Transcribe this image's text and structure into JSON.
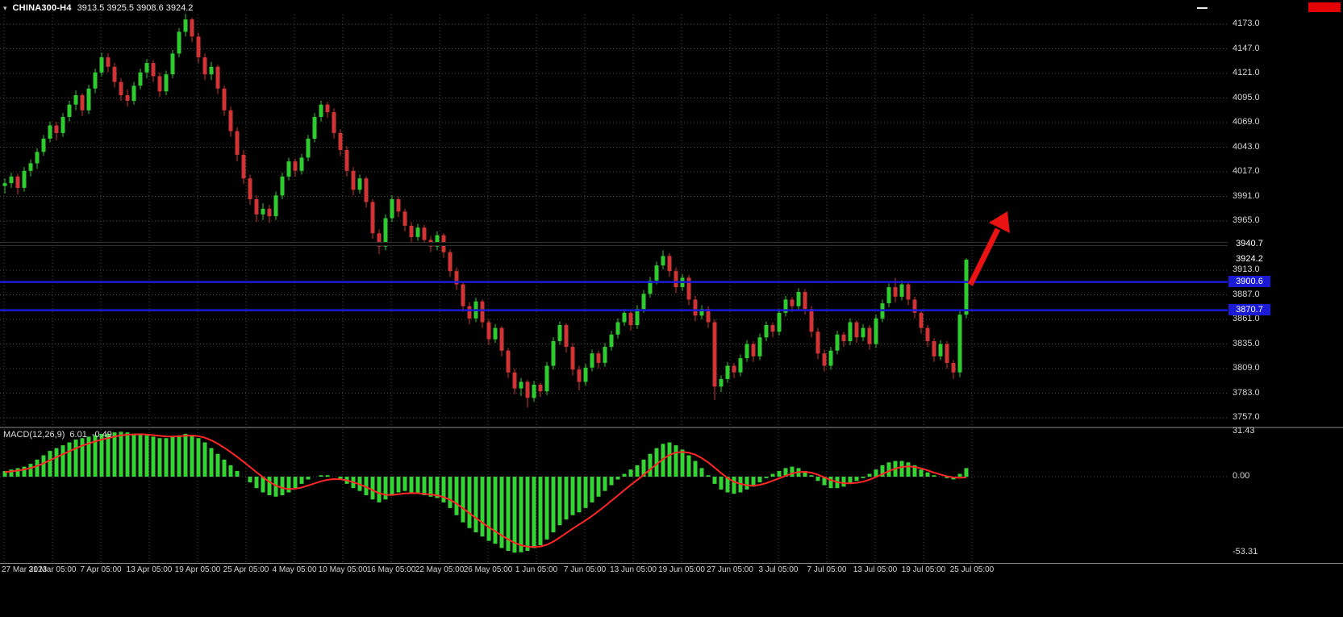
{
  "titlebar": {
    "symbol": "CHINA300-H4",
    "ohlc": "3913.5 3925.5 3908.6 3924.2"
  },
  "colors": {
    "background": "#000000",
    "grid": "#4a4a4a",
    "bull": "#2ecc2e",
    "bear": "#d03434",
    "macd_hist": "#35d435",
    "macd_signal": "#ff2626",
    "separator": "#8a8a8a",
    "axis_text": "#d4d4d4",
    "tag_text": "#ffffff",
    "blue_line": "#1b1bd6",
    "black_line": "#000000",
    "arrow": "#ea1212",
    "red_badge": "#e20000"
  },
  "chart_data": {
    "type": "candlestick",
    "symbol": "CHINA300",
    "timeframe": "H4",
    "last_ohlc": {
      "open": 3913.5,
      "high": 3925.5,
      "low": 3908.6,
      "close": 3924.2
    },
    "price_axis": {
      "grid_values": [
        4173,
        4147,
        4121,
        4095,
        4069,
        4043,
        4017,
        3991,
        3965,
        3939,
        3913,
        3887,
        3861,
        3835,
        3809,
        3783,
        3757
      ],
      "tick_labels": [
        {
          "value": 4173,
          "text": "4173.0"
        },
        {
          "value": 4147,
          "text": "4147.0"
        },
        {
          "value": 4121,
          "text": "4121.0"
        },
        {
          "value": 4095,
          "text": "4095.0"
        },
        {
          "value": 4069,
          "text": "4069.0"
        },
        {
          "value": 4043,
          "text": "4043.0"
        },
        {
          "value": 4017,
          "text": "4017.0"
        },
        {
          "value": 3991,
          "text": "3991.0"
        },
        {
          "value": 3965,
          "text": "3965.0"
        },
        {
          "value": 3913,
          "text": "3913.0"
        },
        {
          "value": 3887,
          "text": "3887.0"
        },
        {
          "value": 3861,
          "text": "3861.0"
        },
        {
          "value": 3835,
          "text": "3835.0"
        },
        {
          "value": 3809,
          "text": "3809.0"
        },
        {
          "value": 3783,
          "text": "3783.0"
        },
        {
          "value": 3757,
          "text": "3757.0"
        }
      ],
      "tags": [
        {
          "text": "3940.7",
          "value": 3940.7,
          "bg": "#000000"
        },
        {
          "text": "3924.2",
          "value": 3924.2,
          "bg": "#000000"
        },
        {
          "text": "3900.6",
          "value": 3900.6,
          "bg": "#1b1bd6"
        },
        {
          "text": "3870.7",
          "value": 3870.7,
          "bg": "#1b1bd6"
        }
      ]
    },
    "hlines": [
      {
        "value": 3940.7,
        "color": "#000000",
        "halo": "#2f2f2f",
        "width": 3
      },
      {
        "value": 3900.6,
        "color": "#1b1bd6",
        "width": 2.5
      },
      {
        "value": 3870.7,
        "color": "#1b1bd6",
        "width": 2.5
      }
    ],
    "time_axis": [
      "27 Mar 2023",
      "31 Mar 05:00",
      "7 Apr 05:00",
      "13 Apr 05:00",
      "19 Apr 05:00",
      "25 Apr 05:00",
      "4 May 05:00",
      "10 May 05:00",
      "16 May 05:00",
      "22 May 05:00",
      "26 May 05:00",
      "1 Jun 05:00",
      "7 Jun 05:00",
      "13 Jun 05:00",
      "19 Jun 05:00",
      "27 Jun 05:00",
      "3 Jul 05:00",
      "7 Jul 05:00",
      "13 Jul 05:00",
      "19 Jul 05:00",
      "25 Jul 05:00"
    ],
    "candles": [
      [
        4002,
        4010,
        3994,
        4005
      ],
      [
        4005,
        4016,
        4000,
        4012
      ],
      [
        4012,
        4015,
        3993,
        4000
      ],
      [
        4000,
        4022,
        3996,
        4018
      ],
      [
        4018,
        4030,
        4012,
        4026
      ],
      [
        4026,
        4042,
        4020,
        4038
      ],
      [
        4038,
        4056,
        4034,
        4052
      ],
      [
        4052,
        4070,
        4048,
        4066
      ],
      [
        4066,
        4070,
        4050,
        4058
      ],
      [
        4058,
        4079,
        4054,
        4075
      ],
      [
        4075,
        4092,
        4070,
        4088
      ],
      [
        4088,
        4103,
        4082,
        4098
      ],
      [
        4098,
        4100,
        4076,
        4082
      ],
      [
        4082,
        4109,
        4078,
        4105
      ],
      [
        4105,
        4126,
        4100,
        4122
      ],
      [
        4122,
        4143,
        4118,
        4138
      ],
      [
        4138,
        4142,
        4122,
        4128
      ],
      [
        4128,
        4132,
        4106,
        4112
      ],
      [
        4112,
        4116,
        4092,
        4098
      ],
      [
        4098,
        4104,
        4086,
        4092
      ],
      [
        4092,
        4112,
        4088,
        4108
      ],
      [
        4108,
        4126,
        4104,
        4122
      ],
      [
        4122,
        4136,
        4116,
        4132
      ],
      [
        4132,
        4135,
        4112,
        4118
      ],
      [
        4118,
        4122,
        4096,
        4102
      ],
      [
        4102,
        4124,
        4098,
        4120
      ],
      [
        4120,
        4146,
        4116,
        4142
      ],
      [
        4142,
        4169,
        4138,
        4165
      ],
      [
        4165,
        4184,
        4160,
        4178
      ],
      [
        4178,
        4180,
        4154,
        4160
      ],
      [
        4160,
        4164,
        4132,
        4138
      ],
      [
        4138,
        4142,
        4114,
        4120
      ],
      [
        4120,
        4133,
        4114,
        4128
      ],
      [
        4128,
        4130,
        4099,
        4105
      ],
      [
        4105,
        4108,
        4076,
        4082
      ],
      [
        4082,
        4086,
        4054,
        4060
      ],
      [
        4060,
        4064,
        4028,
        4035
      ],
      [
        4035,
        4040,
        4004,
        4010
      ],
      [
        4010,
        4014,
        3982,
        3988
      ],
      [
        3988,
        3992,
        3964,
        3972
      ],
      [
        3972,
        3984,
        3966,
        3978
      ],
      [
        3978,
        3982,
        3963,
        3970
      ],
      [
        3970,
        3996,
        3966,
        3992
      ],
      [
        3992,
        4016,
        3988,
        4012
      ],
      [
        4012,
        4032,
        4008,
        4028
      ],
      [
        4028,
        4031,
        4012,
        4018
      ],
      [
        4018,
        4036,
        4014,
        4032
      ],
      [
        4032,
        4056,
        4028,
        4052
      ],
      [
        4052,
        4079,
        4048,
        4075
      ],
      [
        4075,
        4092,
        4070,
        4088
      ],
      [
        4088,
        4091,
        4074,
        4080
      ],
      [
        4080,
        4084,
        4052,
        4058
      ],
      [
        4058,
        4062,
        4034,
        4040
      ],
      [
        4040,
        4044,
        4012,
        4018
      ],
      [
        4018,
        4022,
        3992,
        3998
      ],
      [
        3998,
        4014,
        3994,
        4010
      ],
      [
        4010,
        4012,
        3979,
        3985
      ],
      [
        3985,
        3988,
        3946,
        3952
      ],
      [
        3952,
        3956,
        3930,
        3938
      ],
      [
        3938,
        3972,
        3934,
        3968
      ],
      [
        3968,
        3992,
        3964,
        3988
      ],
      [
        3988,
        3991,
        3969,
        3975
      ],
      [
        3975,
        3978,
        3954,
        3960
      ],
      [
        3960,
        3964,
        3942,
        3948
      ],
      [
        3948,
        3962,
        3944,
        3958
      ],
      [
        3958,
        3961,
        3939,
        3945
      ],
      [
        3945,
        3949,
        3932,
        3938
      ],
      [
        3938,
        3954,
        3934,
        3950
      ],
      [
        3950,
        3952,
        3926,
        3932
      ],
      [
        3932,
        3935,
        3906,
        3912
      ],
      [
        3912,
        3916,
        3892,
        3898
      ],
      [
        3898,
        3901,
        3869,
        3875
      ],
      [
        3875,
        3879,
        3856,
        3862
      ],
      [
        3862,
        3884,
        3858,
        3880
      ],
      [
        3880,
        3882,
        3852,
        3858
      ],
      [
        3858,
        3861,
        3834,
        3840
      ],
      [
        3840,
        3856,
        3836,
        3852
      ],
      [
        3852,
        3854,
        3822,
        3828
      ],
      [
        3828,
        3831,
        3799,
        3805
      ],
      [
        3805,
        3809,
        3782,
        3788
      ],
      [
        3788,
        3799,
        3780,
        3795
      ],
      [
        3795,
        3797,
        3768,
        3778
      ],
      [
        3778,
        3796,
        3774,
        3792
      ],
      [
        3792,
        3794,
        3779,
        3785
      ],
      [
        3785,
        3816,
        3781,
        3812
      ],
      [
        3812,
        3842,
        3808,
        3838
      ],
      [
        3838,
        3859,
        3834,
        3855
      ],
      [
        3855,
        3857,
        3826,
        3832
      ],
      [
        3832,
        3836,
        3802,
        3808
      ],
      [
        3808,
        3812,
        3786,
        3795
      ],
      [
        3795,
        3814,
        3791,
        3810
      ],
      [
        3810,
        3829,
        3806,
        3825
      ],
      [
        3825,
        3828,
        3809,
        3815
      ],
      [
        3815,
        3836,
        3811,
        3832
      ],
      [
        3832,
        3849,
        3828,
        3845
      ],
      [
        3845,
        3862,
        3841,
        3858
      ],
      [
        3858,
        3872,
        3854,
        3868
      ],
      [
        3868,
        3870,
        3849,
        3855
      ],
      [
        3855,
        3876,
        3851,
        3872
      ],
      [
        3872,
        3892,
        3868,
        3888
      ],
      [
        3888,
        3906,
        3884,
        3902
      ],
      [
        3902,
        3922,
        3898,
        3918
      ],
      [
        3918,
        3934,
        3914,
        3928
      ],
      [
        3928,
        3931,
        3906,
        3912
      ],
      [
        3912,
        3916,
        3889,
        3895
      ],
      [
        3895,
        3909,
        3891,
        3905
      ],
      [
        3905,
        3908,
        3876,
        3882
      ],
      [
        3882,
        3886,
        3859,
        3865
      ],
      [
        3865,
        3876,
        3861,
        3872
      ],
      [
        3872,
        3875,
        3852,
        3858
      ],
      [
        3858,
        3861,
        3776,
        3790
      ],
      [
        3790,
        3802,
        3784,
        3798
      ],
      [
        3798,
        3816,
        3794,
        3812
      ],
      [
        3812,
        3815,
        3799,
        3805
      ],
      [
        3805,
        3824,
        3801,
        3820
      ],
      [
        3820,
        3839,
        3816,
        3835
      ],
      [
        3835,
        3838,
        3816,
        3822
      ],
      [
        3822,
        3846,
        3818,
        3842
      ],
      [
        3842,
        3859,
        3838,
        3855
      ],
      [
        3855,
        3858,
        3842,
        3848
      ],
      [
        3848,
        3872,
        3844,
        3868
      ],
      [
        3868,
        3886,
        3864,
        3882
      ],
      [
        3882,
        3885,
        3869,
        3875
      ],
      [
        3875,
        3894,
        3871,
        3890
      ],
      [
        3890,
        3893,
        3866,
        3872
      ],
      [
        3872,
        3875,
        3842,
        3848
      ],
      [
        3848,
        3852,
        3819,
        3825
      ],
      [
        3825,
        3829,
        3806,
        3812
      ],
      [
        3812,
        3832,
        3808,
        3828
      ],
      [
        3828,
        3849,
        3824,
        3845
      ],
      [
        3845,
        3848,
        3832,
        3838
      ],
      [
        3838,
        3862,
        3834,
        3858
      ],
      [
        3858,
        3860,
        3836,
        3842
      ],
      [
        3842,
        3856,
        3838,
        3852
      ],
      [
        3852,
        3855,
        3829,
        3835
      ],
      [
        3835,
        3866,
        3831,
        3862
      ],
      [
        3862,
        3882,
        3858,
        3878
      ],
      [
        3878,
        3899,
        3874,
        3895
      ],
      [
        3895,
        3905,
        3879,
        3885
      ],
      [
        3885,
        3902,
        3881,
        3898
      ],
      [
        3898,
        3901,
        3876,
        3882
      ],
      [
        3882,
        3885,
        3862,
        3868
      ],
      [
        3868,
        3871,
        3846,
        3852
      ],
      [
        3852,
        3855,
        3832,
        3838
      ],
      [
        3838,
        3841,
        3816,
        3822
      ],
      [
        3822,
        3839,
        3818,
        3835
      ],
      [
        3835,
        3838,
        3809,
        3815
      ],
      [
        3815,
        3818,
        3798,
        3805
      ],
      [
        3805,
        3870,
        3800,
        3866
      ],
      [
        3866,
        3925.5,
        3862,
        3924.2
      ]
    ],
    "macd": {
      "label": "MACD(12,26,9)",
      "macd_value": "6.01",
      "signal_value": "-0.49",
      "axis_labels": [
        {
          "text": "31.43",
          "value": 31.43
        },
        {
          "text": "0.00",
          "value": 0
        },
        {
          "text": "-53.31",
          "value": -53.31
        }
      ],
      "hist": [
        4,
        5,
        6,
        7,
        9,
        12,
        15,
        18,
        20,
        22,
        24,
        26,
        27,
        28,
        29,
        30,
        30,
        31,
        31.4,
        31,
        30,
        30,
        29,
        28,
        27,
        27,
        28,
        29,
        30,
        29,
        27,
        24,
        20,
        16,
        12,
        8,
        4,
        0,
        -4,
        -8,
        -11,
        -13,
        -14,
        -13,
        -11,
        -8,
        -5,
        -2,
        0,
        1,
        1,
        0,
        -2,
        -5,
        -8,
        -10,
        -13,
        -16,
        -18,
        -16,
        -13,
        -11,
        -10,
        -11,
        -12,
        -13,
        -14,
        -15,
        -18,
        -22,
        -27,
        -32,
        -36,
        -39,
        -42,
        -45,
        -47,
        -50,
        -52,
        -53.3,
        -53,
        -52,
        -50,
        -48,
        -44,
        -39,
        -34,
        -30,
        -27,
        -25,
        -22,
        -18,
        -14,
        -10,
        -6,
        -2,
        2,
        5,
        8,
        12,
        16,
        20,
        23,
        24,
        22,
        19,
        15,
        11,
        6,
        1,
        -5,
        -9,
        -11,
        -12,
        -11,
        -9,
        -7,
        -4,
        -1,
        2,
        4,
        6,
        7,
        6,
        4,
        1,
        -3,
        -6,
        -8,
        -8,
        -7,
        -5,
        -3,
        -1,
        2,
        5,
        8,
        10,
        11,
        11,
        10,
        8,
        5,
        3,
        1,
        0,
        -1,
        -2,
        2,
        6.01
      ],
      "signal": [
        3.3,
        3.7,
        4.3,
        5,
        6,
        7.5,
        9.4,
        11.5,
        13.6,
        15.7,
        17.8,
        19.9,
        21.7,
        23.3,
        24.7,
        26,
        27,
        28,
        28.9,
        29.4,
        29.6,
        29.7,
        29.5,
        29.1,
        28.6,
        28.2,
        28.1,
        28.3,
        28.7,
        28.8,
        28.4,
        27.3,
        25.5,
        23.1,
        20.3,
        17.2,
        13.9,
        10.4,
        6.8,
        3.1,
        -0.4,
        -3.6,
        -6.2,
        -7.9,
        -8.7,
        -8.5,
        -7.6,
        -6.2,
        -4.7,
        -3.3,
        -2.2,
        -1.7,
        -1.8,
        -2.6,
        -3.9,
        -5.4,
        -7.3,
        -9.5,
        -11.6,
        -12.7,
        -12.8,
        -12.3,
        -11.7,
        -11.5,
        -11.6,
        -12,
        -12.5,
        -13.1,
        -14.3,
        -16.2,
        -18.9,
        -22.2,
        -25.6,
        -29,
        -32.2,
        -35.4,
        -38.3,
        -41.2,
        -43.9,
        -46.3,
        -48,
        -49,
        -49.2,
        -48.9,
        -47.7,
        -45.5,
        -42.6,
        -39.5,
        -36.4,
        -33.5,
        -30.6,
        -27.5,
        -24.1,
        -20.6,
        -16.9,
        -13.2,
        -9.4,
        -5.8,
        -2.3,
        1.3,
        5,
        8.7,
        12.3,
        15.2,
        16.9,
        17.4,
        16.8,
        15.4,
        13,
        10,
        6.3,
        2.5,
        -0.9,
        -3.7,
        -5,
        -6,
        -6.3,
        -5.7,
        -4.5,
        -2.9,
        -1.2,
        0.6,
        2.2,
        3.2,
        3.4,
        2.8,
        1.4,
        -0.5,
        -2.4,
        -3.8,
        -4.6,
        -4.7,
        -4.3,
        -3.5,
        -2.1,
        -0.3,
        1.8,
        3.9,
        5.7,
        6.8,
        7.2,
        6.8,
        5.8,
        4.4,
        2.9,
        1.5,
        0.3,
        -0.5,
        -0.8,
        -0.49
      ]
    },
    "annotation": {
      "shape": "up-arrow",
      "color": "#ea1212"
    }
  }
}
